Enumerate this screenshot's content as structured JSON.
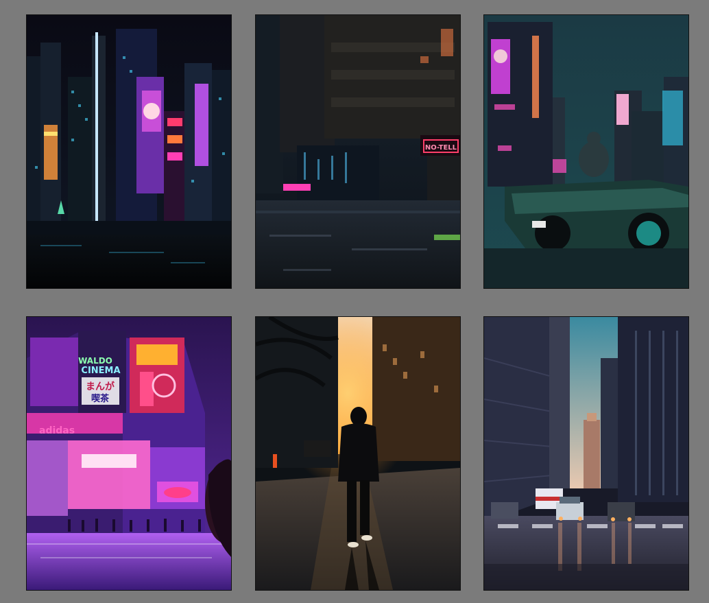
{
  "gallery": {
    "images": [
      {
        "subject": "night-city-skyline"
      },
      {
        "subject": "rainy-street-neon-sign",
        "sign_text": "NO-TELL"
      },
      {
        "subject": "man-with-sports-car"
      },
      {
        "subject": "neon-cinema-building",
        "signs": [
          "WALDO",
          "CINEMA",
          "まんが",
          "喫茶",
          "adidas"
        ]
      },
      {
        "subject": "hooded-walker-sunset-street"
      },
      {
        "subject": "city-street-canyon-dusk"
      }
    ]
  },
  "colors": {
    "background": "#7b7b7b",
    "neon_pink": "#ff3fb4",
    "neon_cyan": "#3ff0ff",
    "neon_purple": "#9b4dff"
  }
}
